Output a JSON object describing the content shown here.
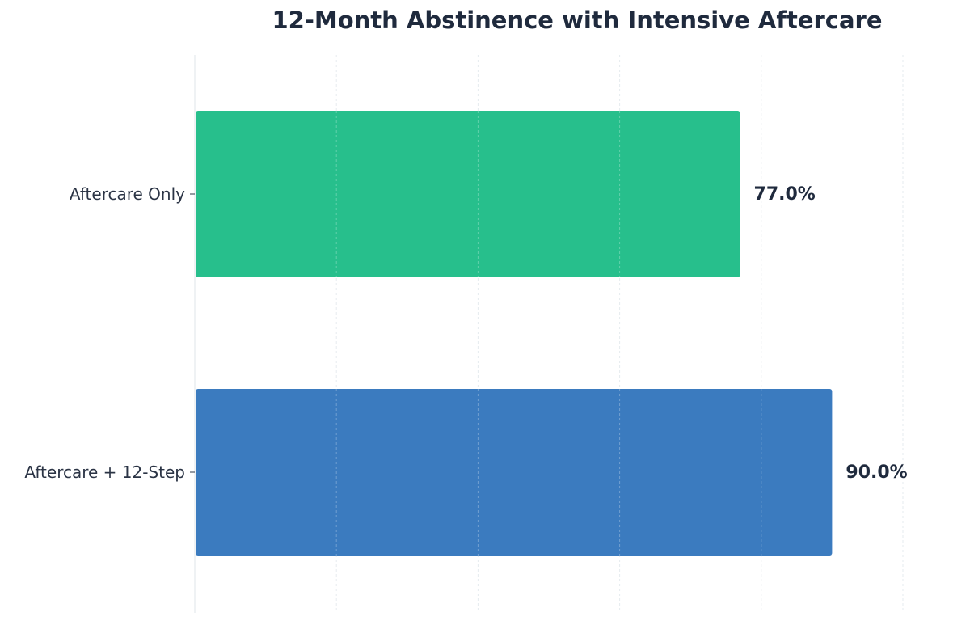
{
  "chart_data": {
    "type": "bar",
    "orientation": "horizontal",
    "title": "12-Month Abstinence with Intensive Aftercare",
    "xlabel": "",
    "ylabel": "",
    "categories": [
      "Aftercare Only",
      "Aftercare + 12-Step"
    ],
    "values": [
      77.0,
      90.0
    ],
    "value_labels": [
      "77.0%",
      "90.0%"
    ],
    "colors": [
      "#27bf8c",
      "#3b7bbf"
    ],
    "xlim": [
      0,
      100
    ],
    "grid": true,
    "legend": "none"
  }
}
